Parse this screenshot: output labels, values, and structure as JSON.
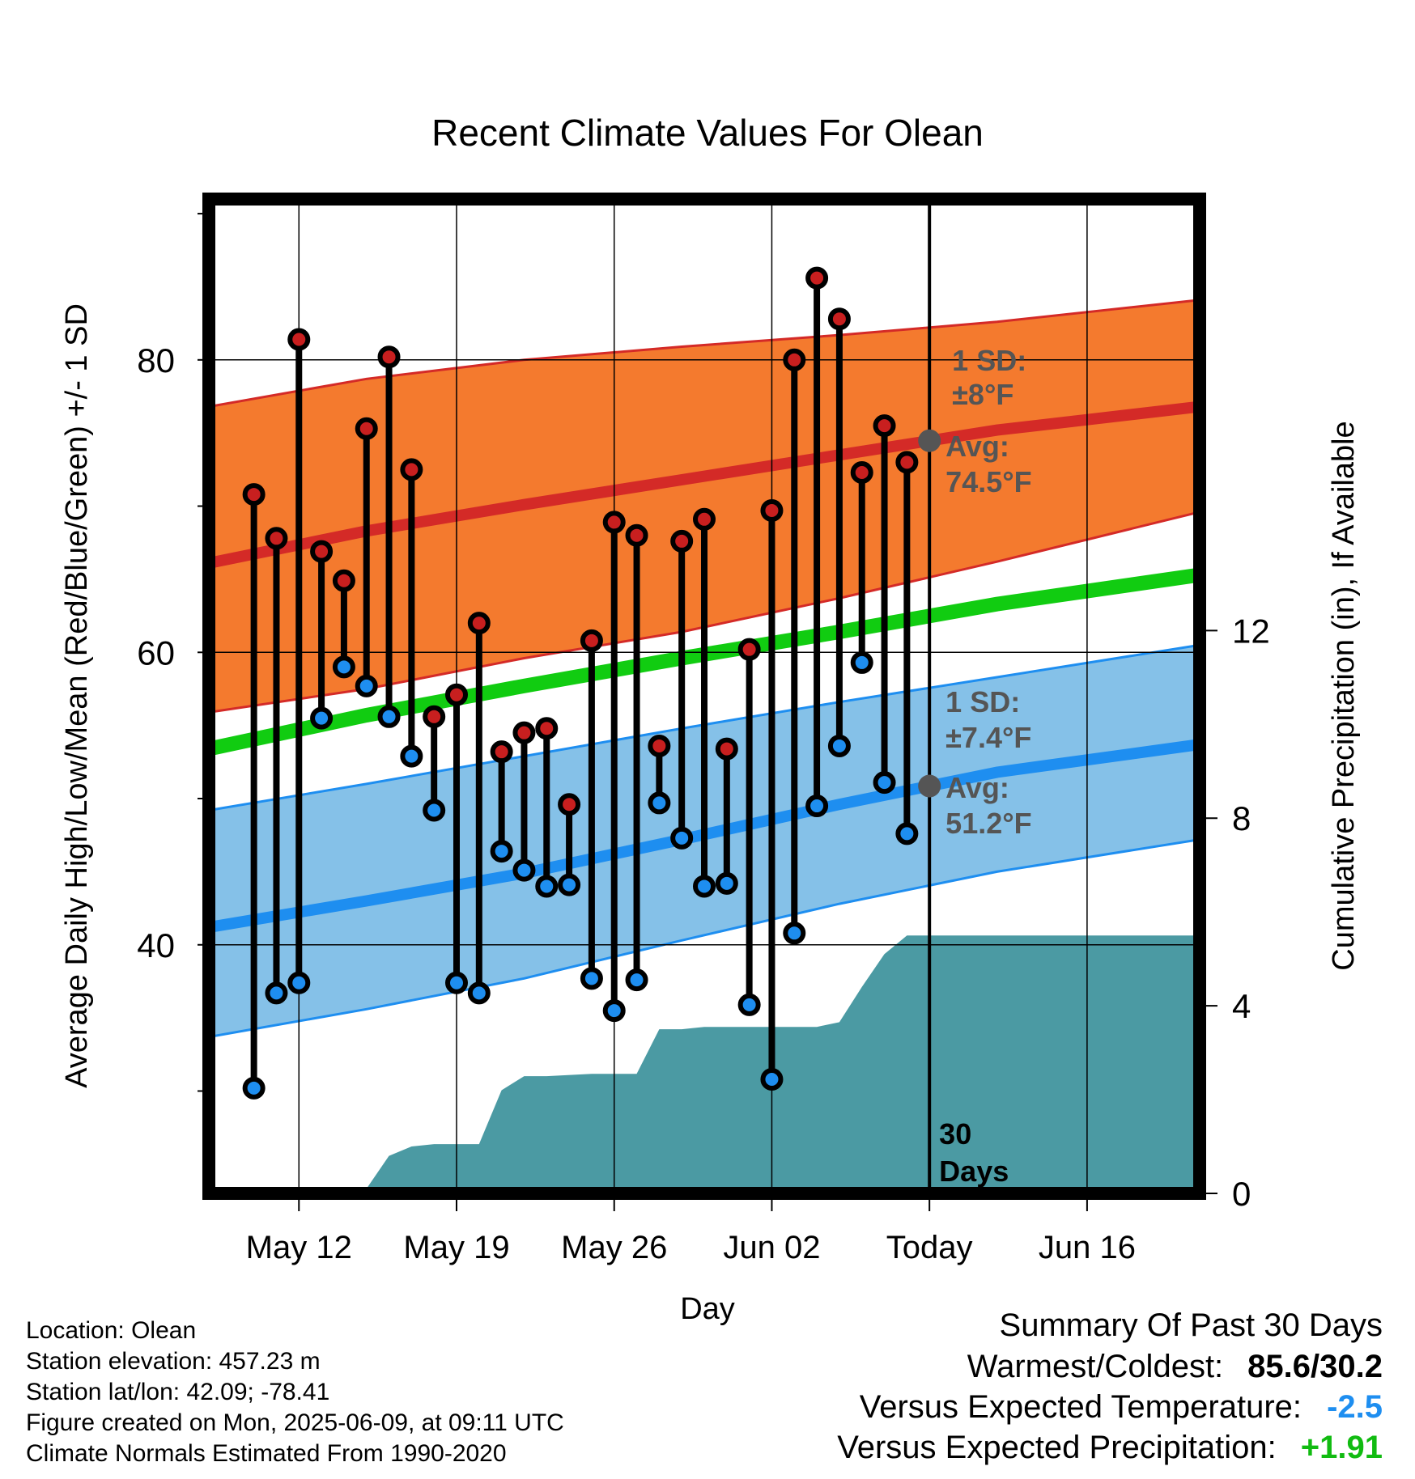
{
  "chart_data": {
    "type": "line",
    "title": "Recent Climate Values For Olean",
    "xlabel": "Day",
    "ylabel": "Average Daily High/Low/Mean (Red/Blue/Green) +/- 1 SD",
    "y2label": "Cumulative Precipitation (in), If Available",
    "x_range": [
      "2025-05-08",
      "2025-06-21"
    ],
    "ylim": [
      23,
      91
    ],
    "y2lim": [
      0,
      21.2
    ],
    "y_ticks": [
      40,
      60,
      80
    ],
    "y2_ticks": [
      0,
      4,
      8,
      12
    ],
    "x_ticks": [
      {
        "date": "2025-05-12",
        "label": "May 12"
      },
      {
        "date": "2025-05-19",
        "label": "May 19"
      },
      {
        "date": "2025-05-26",
        "label": "May 26"
      },
      {
        "date": "2025-06-02",
        "label": "Jun 02"
      },
      {
        "date": "2025-06-09",
        "label": "Today"
      },
      {
        "date": "2025-06-16",
        "label": "Jun 16"
      }
    ],
    "grid": true,
    "today": "2025-06-09",
    "window_label": "30\nDays",
    "daily": [
      {
        "date": "2025-05-10",
        "high": 70.8,
        "low": 30.2
      },
      {
        "date": "2025-05-11",
        "high": 67.8,
        "low": 36.7
      },
      {
        "date": "2025-05-12",
        "high": 81.4,
        "low": 37.4
      },
      {
        "date": "2025-05-13",
        "high": 66.9,
        "low": 55.5
      },
      {
        "date": "2025-05-14",
        "high": 64.9,
        "low": 59.0
      },
      {
        "date": "2025-05-15",
        "high": 75.3,
        "low": 57.7
      },
      {
        "date": "2025-05-16",
        "high": 80.2,
        "low": 55.6
      },
      {
        "date": "2025-05-17",
        "high": 72.5,
        "low": 52.9
      },
      {
        "date": "2025-05-18",
        "high": 55.6,
        "low": 49.2
      },
      {
        "date": "2025-05-19",
        "high": 57.1,
        "low": 37.4
      },
      {
        "date": "2025-05-20",
        "high": 62.0,
        "low": 36.7
      },
      {
        "date": "2025-05-21",
        "high": 53.2,
        "low": 46.4
      },
      {
        "date": "2025-05-22",
        "high": 54.5,
        "low": 45.1
      },
      {
        "date": "2025-05-23",
        "high": 54.8,
        "low": 44.0
      },
      {
        "date": "2025-05-24",
        "high": 49.6,
        "low": 44.1
      },
      {
        "date": "2025-05-25",
        "high": 60.8,
        "low": 37.7
      },
      {
        "date": "2025-05-26",
        "high": 68.9,
        "low": 35.5
      },
      {
        "date": "2025-05-27",
        "high": 68.0,
        "low": 37.6
      },
      {
        "date": "2025-05-28",
        "high": 53.6,
        "low": 49.7
      },
      {
        "date": "2025-05-29",
        "high": 67.6,
        "low": 47.3
      },
      {
        "date": "2025-05-30",
        "high": 69.1,
        "low": 44.0
      },
      {
        "date": "2025-05-31",
        "high": 53.4,
        "low": 44.2
      },
      {
        "date": "2025-06-01",
        "high": 60.2,
        "low": 35.9
      },
      {
        "date": "2025-06-02",
        "high": 69.7,
        "low": 30.8
      },
      {
        "date": "2025-06-03",
        "high": 80.0,
        "low": 40.8
      },
      {
        "date": "2025-06-04",
        "high": 85.6,
        "low": 49.5
      },
      {
        "date": "2025-06-05",
        "high": 82.8,
        "low": 53.6
      },
      {
        "date": "2025-06-06",
        "high": 72.3,
        "low": 59.3
      },
      {
        "date": "2025-06-07",
        "high": 75.5,
        "low": 51.1
      },
      {
        "date": "2025-06-08",
        "high": 73.0,
        "low": 47.6
      }
    ],
    "normals": {
      "dates": [
        "2025-05-08",
        "2025-05-15",
        "2025-05-22",
        "2025-05-29",
        "2025-06-05",
        "2025-06-12",
        "2025-06-21"
      ],
      "high_mean": [
        66.1,
        68.3,
        70.1,
        71.8,
        73.5,
        75.2,
        76.8
      ],
      "high_upper": [
        76.8,
        78.7,
        80.0,
        80.9,
        81.7,
        82.6,
        84.1
      ],
      "high_lower": [
        55.9,
        57.5,
        59.6,
        61.4,
        63.7,
        66.2,
        69.6
      ],
      "low_mean": [
        41.2,
        43.0,
        44.9,
        47.2,
        49.6,
        51.8,
        53.7
      ],
      "low_upper": [
        49.2,
        51.0,
        52.9,
        54.8,
        56.6,
        58.3,
        60.5
      ],
      "low_lower": [
        33.7,
        35.6,
        37.7,
        40.3,
        42.8,
        45.0,
        47.2
      ],
      "mean": [
        53.4,
        55.7,
        57.7,
        59.6,
        61.4,
        63.3,
        65.3
      ]
    },
    "precip_cumulative": {
      "dates": [
        "2025-05-09",
        "2025-05-13",
        "2025-05-15",
        "2025-05-16",
        "2025-05-17",
        "2025-05-18",
        "2025-05-20",
        "2025-05-21",
        "2025-05-22",
        "2025-05-23",
        "2025-05-25",
        "2025-05-26",
        "2025-05-27",
        "2025-05-28",
        "2025-05-29",
        "2025-05-30",
        "2025-05-31",
        "2025-06-02",
        "2025-06-04",
        "2025-06-05",
        "2025-06-06",
        "2025-06-07",
        "2025-06-08",
        "2025-06-09",
        "2025-06-21"
      ],
      "values": [
        0,
        0,
        0.1,
        0.8,
        1.0,
        1.05,
        1.05,
        2.2,
        2.5,
        2.5,
        2.55,
        2.55,
        2.55,
        3.5,
        3.5,
        3.55,
        3.55,
        3.55,
        3.55,
        3.65,
        4.4,
        5.1,
        5.5,
        5.5,
        5.5
      ]
    },
    "annotations": {
      "high_sd": "1 SD:",
      "high_sd_value": "±8°F",
      "high_avg": "Avg:",
      "high_avg_value": "74.5°F",
      "low_sd": "1 SD:",
      "low_sd_value": "±7.4°F",
      "low_avg": "Avg:",
      "low_avg_value": "51.2°F"
    },
    "colors": {
      "high_band": "#f47a2e",
      "high_line": "#d42a27",
      "low_band": "#85c1e8",
      "low_line": "#1e8ef0",
      "mean_line": "#11cc11",
      "precip": "#4b9aa3",
      "high_dot": "#c81f1f",
      "low_dot": "#1e8ef0",
      "annotation": "#555555"
    }
  },
  "info": {
    "location": "Location: Olean",
    "elevation": "Station elevation: 457.23 m",
    "latlon": "Station lat/lon: 42.09; -78.41",
    "created": "Figure created on Mon, 2025-06-09, at 09:11 UTC",
    "normals": "Climate Normals Estimated From 1990-2020"
  },
  "summary": {
    "title": "Summary Of Past 30 Days",
    "warmest_coldest_label": "Warmest/Coldest:",
    "warmest_coldest_value": "85.6/30.2",
    "temp_label": "Versus Expected Temperature:",
    "temp_value": "-2.5",
    "temp_color": "#1e8ef0",
    "precip_label": "Versus Expected Precipitation:",
    "precip_value": "+1.91",
    "precip_color": "#11bb11"
  }
}
